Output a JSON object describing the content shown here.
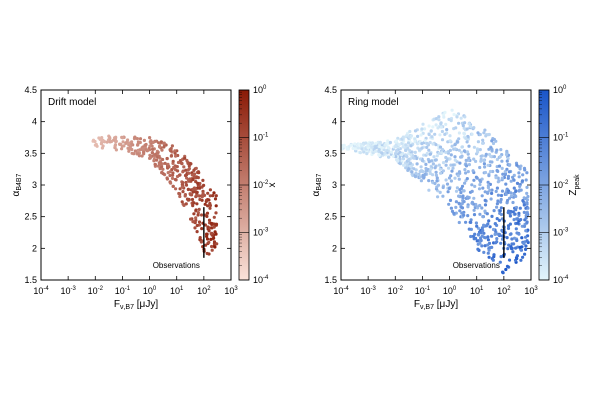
{
  "figure": {
    "x_axis_label_main": "F",
    "x_axis_label_sub": "ν,B7",
    "x_axis_label_unit": " [μJy]",
    "y_axis_label_main": "α",
    "y_axis_label_sub": "B4B7"
  },
  "chart_data": [
    {
      "type": "scatter",
      "title": "Drift model",
      "xscale": "log",
      "xlim": [
        0.0001,
        1000
      ],
      "ylim": [
        1.5,
        4.5
      ],
      "xticks": [
        0.0001,
        0.001,
        0.01,
        0.1,
        1,
        10,
        100,
        1000
      ],
      "xtick_labels": [
        "10-4",
        "10-3",
        "10-2",
        "10-1",
        "100",
        "101",
        "102",
        "103"
      ],
      "yticks": [
        1.5,
        2,
        2.5,
        3,
        3.5,
        4,
        4.5
      ],
      "ytick_labels": [
        "1.5",
        "2",
        "2.5",
        "3",
        "3.5",
        "4",
        "4.5"
      ],
      "colorbar": {
        "label": "x",
        "scale": "log",
        "range": [
          0.0001,
          1
        ],
        "tick_labels": [
          "100",
          "10-1",
          "10-2",
          "10-3",
          "10-4"
        ],
        "color_low": "#fbe3da",
        "color_high": "#8a1a06"
      },
      "annotation": {
        "text": "Observations",
        "x": 100,
        "y_low": 1.85,
        "y_high": 2.65
      },
      "point_cloud": {
        "count": 420,
        "envelope": [
          [
            0.005,
            3.62,
            3.72
          ],
          [
            0.05,
            3.55,
            3.8
          ],
          [
            1,
            3.4,
            3.75
          ],
          [
            10,
            2.9,
            3.6
          ],
          [
            50,
            2.3,
            3.3
          ],
          [
            120,
            1.85,
            3.0
          ],
          [
            300,
            2.0,
            2.85
          ]
        ]
      }
    },
    {
      "type": "scatter",
      "title": "Ring model",
      "xscale": "log",
      "xlim": [
        0.0001,
        1000
      ],
      "ylim": [
        1.5,
        4.5
      ],
      "xticks": [
        0.0001,
        0.001,
        0.01,
        0.1,
        1,
        10,
        100,
        1000
      ],
      "xtick_labels": [
        "10-4",
        "10-3",
        "10-2",
        "10-1",
        "100",
        "101",
        "102",
        "103"
      ],
      "yticks": [
        1.5,
        2,
        2.5,
        3,
        3.5,
        4,
        4.5
      ],
      "ytick_labels": [
        "1.5",
        "2",
        "2.5",
        "3",
        "3.5",
        "4",
        "4.5"
      ],
      "colorbar": {
        "label": "Zpeak",
        "scale": "log",
        "range": [
          0.0001,
          1
        ],
        "tick_labels": [
          "100",
          "10-1",
          "10-2",
          "10-3",
          "10-4"
        ],
        "color_low": "#e3f5fb",
        "color_high": "#1a55c8"
      },
      "annotation": {
        "text": "Observations",
        "x": 100,
        "y_low": 1.85,
        "y_high": 2.65
      },
      "point_cloud": {
        "count": 1000,
        "envelope": [
          [
            0.0001,
            3.57,
            3.63
          ],
          [
            0.01,
            3.4,
            3.72
          ],
          [
            1,
            2.6,
            4.2
          ],
          [
            10,
            2.0,
            4.0
          ],
          [
            100,
            1.6,
            3.6
          ],
          [
            800,
            1.9,
            3.2
          ]
        ]
      }
    }
  ]
}
